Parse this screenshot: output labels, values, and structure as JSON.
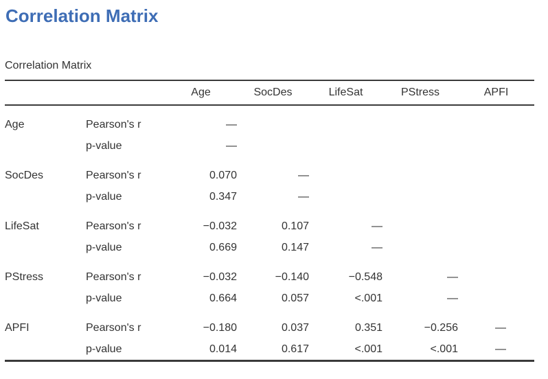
{
  "page": {
    "title": "Correlation Matrix"
  },
  "colors": {
    "title_accent": "#3e6db5",
    "text": "#333333",
    "rule": "#3a3a3a"
  },
  "table": {
    "caption": "Correlation Matrix",
    "columns": [
      "Age",
      "SocDes",
      "LifeSat",
      "PStress",
      "APFI"
    ],
    "stat_labels": [
      "Pearson's r",
      "p-value"
    ],
    "groups": [
      {
        "variable": "Age",
        "rows": [
          {
            "stat": "Pearson's r",
            "values": [
              "—",
              "",
              "",
              "",
              ""
            ]
          },
          {
            "stat": "p-value",
            "values": [
              "—",
              "",
              "",
              "",
              ""
            ]
          }
        ]
      },
      {
        "variable": "SocDes",
        "rows": [
          {
            "stat": "Pearson's r",
            "values": [
              "0.070",
              "—",
              "",
              "",
              ""
            ]
          },
          {
            "stat": "p-value",
            "values": [
              "0.347",
              "—",
              "",
              "",
              ""
            ]
          }
        ]
      },
      {
        "variable": "LifeSat",
        "rows": [
          {
            "stat": "Pearson's r",
            "values": [
              "−0.032",
              "0.107",
              "—",
              "",
              ""
            ]
          },
          {
            "stat": "p-value",
            "values": [
              "0.669",
              "0.147",
              "—",
              "",
              ""
            ]
          }
        ]
      },
      {
        "variable": "PStress",
        "rows": [
          {
            "stat": "Pearson's r",
            "values": [
              "−0.032",
              "−0.140",
              "−0.548",
              "—",
              ""
            ]
          },
          {
            "stat": "p-value",
            "values": [
              "0.664",
              "0.057",
              "<.001",
              "—",
              ""
            ]
          }
        ]
      },
      {
        "variable": "APFI",
        "rows": [
          {
            "stat": "Pearson's r",
            "values": [
              "−0.180",
              "0.037",
              "0.351",
              "−0.256",
              "—"
            ]
          },
          {
            "stat": "p-value",
            "values": [
              "0.014",
              "0.617",
              "<.001",
              "<.001",
              "—"
            ]
          }
        ]
      }
    ]
  }
}
